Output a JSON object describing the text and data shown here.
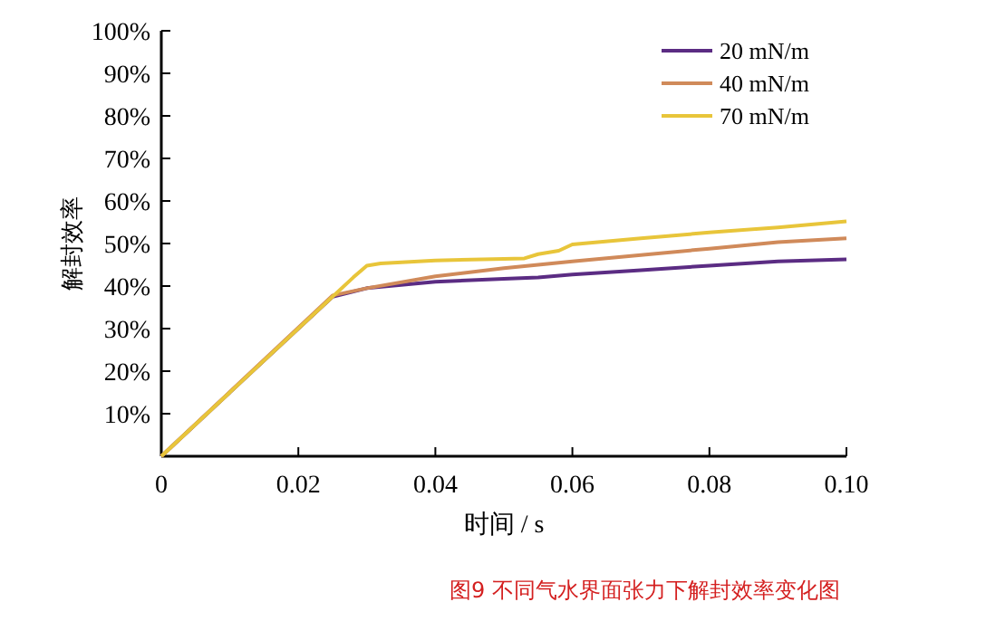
{
  "chart_data": {
    "type": "line",
    "xlabel": "时间 / s",
    "ylabel": "解封效率",
    "annotations": [
      "图9 不同气水界面张力下解封效率变化图"
    ],
    "xlim": [
      0,
      0.1
    ],
    "xticks": [
      0,
      0.02,
      0.04,
      0.06,
      0.08,
      {
        "value": 0.1,
        "label": "0.10"
      }
    ],
    "ylim": [
      0,
      100
    ],
    "yticks": [
      {
        "value": 10,
        "label": "10%"
      },
      {
        "value": 20,
        "label": "20%"
      },
      {
        "value": 30,
        "label": "30%"
      },
      {
        "value": 40,
        "label": "40%"
      },
      {
        "value": 50,
        "label": "50%"
      },
      {
        "value": 60,
        "label": "60%"
      },
      {
        "value": 70,
        "label": "70%"
      },
      {
        "value": 80,
        "label": "80%"
      },
      {
        "value": 90,
        "label": "90%"
      },
      {
        "value": 100,
        "label": "100%"
      }
    ],
    "grid": false,
    "legend": "top right",
    "marker": "none",
    "line_style": "solid",
    "series": [
      {
        "name": "20 mN/m",
        "color": "#5b2c83",
        "x": [
          0,
          0.025,
          0.03,
          0.04,
          0.05,
          0.055,
          0.06,
          0.07,
          0.08,
          0.09,
          0.1
        ],
        "values": [
          0,
          37.5,
          39.5,
          41,
          41.7,
          42,
          42.7,
          43.7,
          44.8,
          45.8,
          46.3
        ]
      },
      {
        "name": "40 mN/m",
        "color": "#d08a5a",
        "x": [
          0,
          0.025,
          0.03,
          0.04,
          0.05,
          0.06,
          0.07,
          0.08,
          0.09,
          0.1
        ],
        "values": [
          0,
          37.8,
          39.5,
          42.3,
          44.2,
          45.8,
          47.3,
          48.8,
          50.3,
          51.2
        ]
      },
      {
        "name": "70 mN/m",
        "color": "#e8c53a",
        "x": [
          0,
          0.024,
          0.028,
          0.03,
          0.032,
          0.04,
          0.05,
          0.053,
          0.055,
          0.058,
          0.06,
          0.07,
          0.08,
          0.09,
          0.1
        ],
        "values": [
          0,
          36,
          42,
          44.8,
          45.3,
          46,
          46.4,
          46.5,
          47.5,
          48.3,
          49.8,
          51.2,
          52.6,
          53.8,
          55.2
        ]
      }
    ]
  }
}
